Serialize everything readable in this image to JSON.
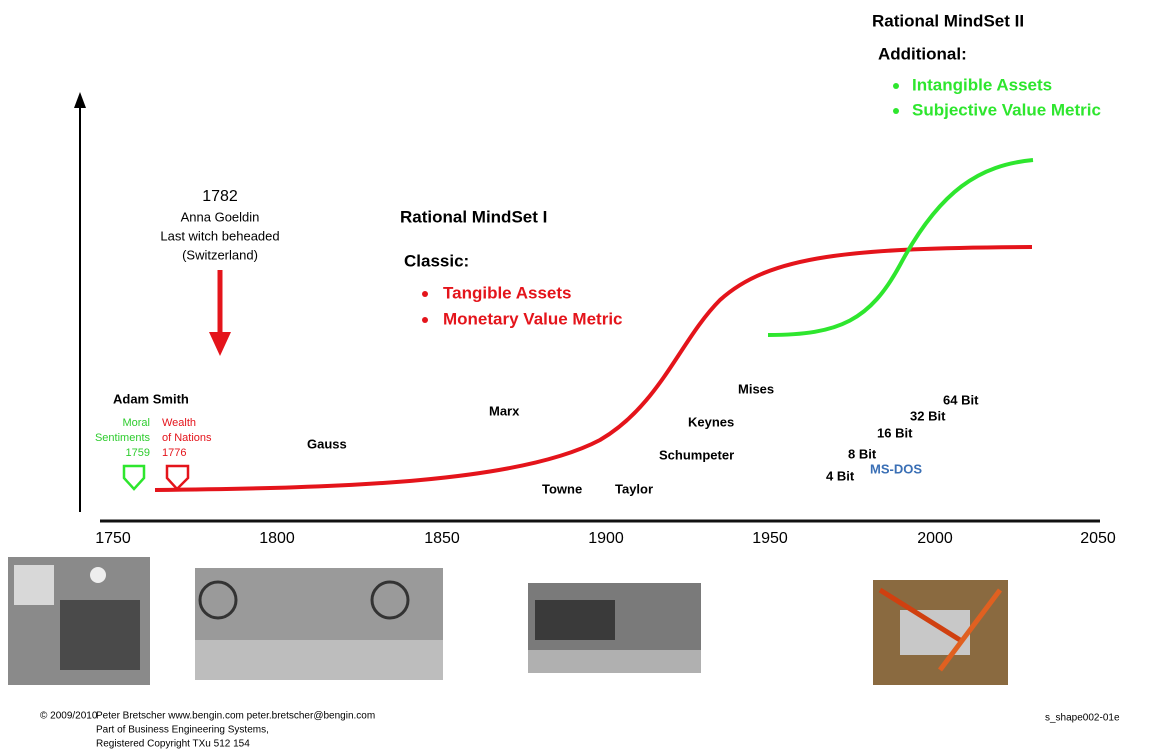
{
  "mindset_2": {
    "title": "Rational MindSet II",
    "subtitle": "Additional:",
    "items": [
      "Intangible Assets",
      "Subjective Value Metric"
    ]
  },
  "mindset_1": {
    "title": "Rational MindSet I",
    "subtitle": "Classic:",
    "items": [
      "Tangible Assets",
      "Monetary Value Metric"
    ]
  },
  "event": {
    "year": "1782",
    "lines": [
      "Anna Goeldin",
      "Last witch beheaded",
      "(Switzerland)"
    ]
  },
  "adam_smith": {
    "name": "Adam Smith",
    "moral": [
      "Moral",
      "Sentiments",
      "1759"
    ],
    "wealth": [
      "Wealth",
      "of Nations",
      "1776"
    ]
  },
  "names": [
    "Gauss",
    "Marx",
    "Towne",
    "Taylor",
    "Schumpeter",
    "Keynes",
    "Mises"
  ],
  "computing": [
    "64 Bit",
    "32 Bit",
    "16 Bit",
    "8 Bit",
    "4 Bit",
    "MS-DOS"
  ],
  "axis_years": [
    "1750",
    "1800",
    "1850",
    "1900",
    "1950",
    "2000",
    "2050"
  ],
  "footer": {
    "copyright": "© 2009/2010",
    "lines": [
      "Peter Bretscher www.bengin.com peter.bretscher@bengin.com",
      "Part of Business Engineering Systems,",
      "Registered Copyright TXu 512 154"
    ],
    "code": "s_shape002-01e"
  }
}
